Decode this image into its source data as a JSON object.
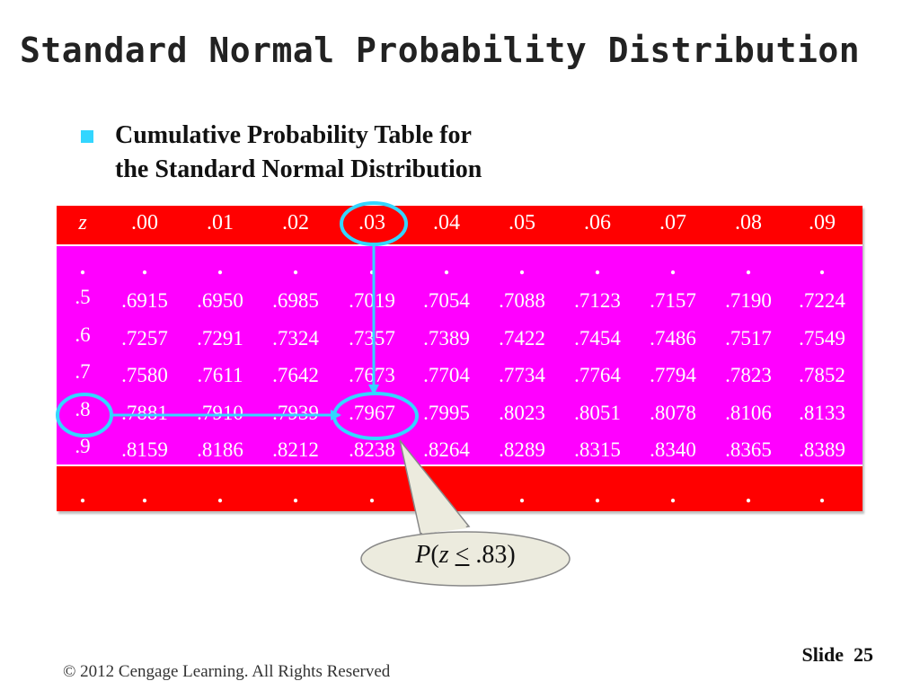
{
  "slide": {
    "title": "Standard Normal Probability Distribution",
    "bullet": {
      "line1": "Cumulative Probability Table for",
      "line2": "the Standard Normal Distribution"
    }
  },
  "table": {
    "corner_label": "z",
    "column_headers": [
      ".00",
      ".01",
      ".02",
      ".03",
      ".04",
      ".05",
      ".06",
      ".07",
      ".08",
      ".09"
    ],
    "ellipsis": ".",
    "rows": [
      {
        "z": ".5",
        "values": [
          ".6915",
          ".6950",
          ".6985",
          ".7019",
          ".7054",
          ".7088",
          ".7123",
          ".7157",
          ".7190",
          ".7224"
        ]
      },
      {
        "z": ".6",
        "values": [
          ".7257",
          ".7291",
          ".7324",
          ".7357",
          ".7389",
          ".7422",
          ".7454",
          ".7486",
          ".7517",
          ".7549"
        ]
      },
      {
        "z": ".7",
        "values": [
          ".7580",
          ".7611",
          ".7642",
          ".7673",
          ".7704",
          ".7734",
          ".7764",
          ".7794",
          ".7823",
          ".7852"
        ]
      },
      {
        "z": ".8",
        "values": [
          ".7881",
          ".7910",
          ".7939",
          ".7967",
          ".7995",
          ".8023",
          ".8051",
          ".8078",
          ".8106",
          ".8133"
        ]
      },
      {
        "z": ".9",
        "values": [
          ".8159",
          ".8186",
          ".8212",
          ".8238",
          ".8264",
          ".8289",
          ".8315",
          ".8340",
          ".8365",
          ".8389"
        ]
      }
    ],
    "highlight": {
      "row_z": ".8",
      "column": ".03",
      "value": ".7967"
    },
    "colors": {
      "header": "#ff0000",
      "body": "#ff00ff",
      "footer": "#ff0000",
      "highlight": "#33d6ff",
      "text": "#ffffff"
    }
  },
  "callout": {
    "p": "P",
    "open": "(",
    "z": "z",
    "le": "<",
    "rest": " .83)"
  },
  "footer": {
    "copyright": "© 2012  Cengage Learning.  All Rights Reserved",
    "slide_label": "Slide",
    "slide_number": "25"
  }
}
